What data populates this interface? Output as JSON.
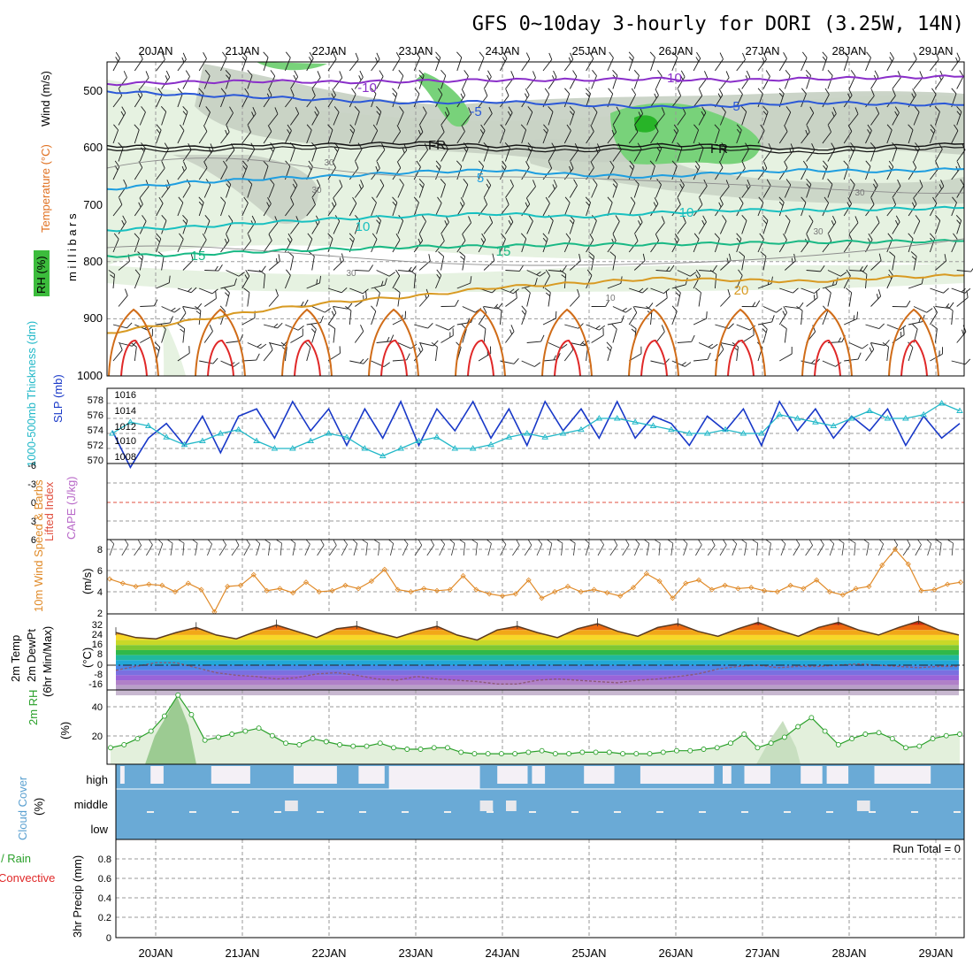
{
  "title": "GFS 0~10day 3-hourly for DORI (3.25W, 14N)",
  "dates": [
    "20JAN",
    "21JAN",
    "22JAN",
    "23JAN",
    "24JAN",
    "25JAN",
    "26JAN",
    "27JAN",
    "28JAN",
    "29JAN"
  ],
  "run_total": "Run Total = 0",
  "colors": {
    "rh_green_light": "#e6f2e1",
    "rh_gray": "#c5cfc2",
    "rh_green": "#78d27a",
    "rh_green_dark": "#28b428",
    "temp_m10": "#8a2fc9",
    "temp_m5": "#2b58d8",
    "temp_5": "#1e9ee0",
    "temp_10": "#18c0c0",
    "temp_15": "#18b884",
    "temp_20": "#d89a22",
    "temp_25": "#d06c18",
    "temp_30": "#e02828",
    "slp": "#1838c8",
    "thickness": "#22b8c8",
    "lifted_index": "#e05040",
    "wind": "#e08a28",
    "temp2m": "#c83c14",
    "dewpt": "#8c5a78",
    "rh2m": "#2aa02a",
    "cloud": "#6aaad6",
    "cloud_clear": "#f4f0f6"
  },
  "chart_data": [
    {
      "id": "upper",
      "type": "heatmap",
      "ylabel": "m i l l i b a r s",
      "legend_label": "RH (%)",
      "label_wind": "Wind (m/s)",
      "label_temp": "Temperature (°C)",
      "y_ticks": [
        "500",
        "600",
        "700",
        "800",
        "900",
        "1000"
      ],
      "contour_labels": [
        "-10",
        "-10",
        "-5",
        "-5",
        "FR",
        "FR",
        "5",
        "10",
        "10",
        "15",
        "15",
        "20",
        "30",
        "30",
        "30",
        "30",
        "30",
        "10"
      ],
      "temp_lines": [
        {
          "label": "-10",
          "mb": [
            489,
            486,
            484,
            486,
            484,
            482,
            482,
            480,
            483,
            480,
            478,
            476
          ]
        },
        {
          "label": "-5",
          "mb": [
            502,
            508,
            512,
            518,
            522,
            520,
            525,
            530,
            527,
            521,
            524,
            526
          ]
        },
        {
          "label": "FR",
          "mb": [
            597,
            600,
            595,
            595,
            592,
            598,
            600,
            596,
            597,
            604,
            598,
            594
          ]
        },
        {
          "label": "5",
          "mb": [
            673,
            662,
            655,
            650,
            643,
            640,
            648,
            652,
            644,
            640,
            642,
            638
          ]
        },
        {
          "label": "10",
          "mb": [
            745,
            740,
            732,
            725,
            720,
            716,
            722,
            715,
            710,
            710,
            708,
            706
          ]
        },
        {
          "label": "15",
          "mb": [
            790,
            788,
            782,
            778,
            774,
            773,
            770,
            770,
            768,
            766,
            765,
            764
          ]
        },
        {
          "label": "20",
          "mb": [
            925,
            905,
            885,
            870,
            860,
            845,
            838,
            830,
            832,
            835,
            828,
            824
          ]
        }
      ]
    },
    {
      "id": "slp_thick",
      "type": "line",
      "label_thick": "1000-500mb Thickness (dm)",
      "label_slp": "SLP (mb)",
      "left_ticks": [
        "578",
        "576",
        "574",
        "572",
        "570"
      ],
      "right_ticks": [
        "1016",
        "1014",
        "1012",
        "1010",
        "1008"
      ],
      "slp_series": [
        1012,
        1007,
        1011,
        1013,
        1010,
        1014,
        1009,
        1014,
        1015,
        1011,
        1016,
        1012,
        1015,
        1010,
        1015,
        1011,
        1016,
        1010,
        1015,
        1012,
        1016,
        1011,
        1015,
        1010,
        1016,
        1012,
        1015,
        1011,
        1016,
        1011,
        1014,
        1013,
        1010,
        1014,
        1012,
        1015,
        1010,
        1016,
        1012,
        1015,
        1011,
        1014,
        1012,
        1015,
        1010,
        1014,
        1011,
        1013
      ],
      "thick_series": [
        574,
        575.5,
        575,
        573.5,
        572.5,
        573,
        574,
        574.5,
        573,
        572,
        572,
        573,
        574,
        573.5,
        572,
        571,
        572,
        573,
        573.5,
        572,
        572,
        572.5,
        573.5,
        574,
        573.5,
        574,
        574.5,
        576,
        576,
        575.5,
        575,
        574.5,
        574,
        574,
        574.5,
        574,
        574,
        576.5,
        576,
        575.5,
        575,
        576,
        577,
        576,
        576,
        576.5,
        578,
        577
      ]
    },
    {
      "id": "li_cape",
      "type": "line",
      "label_li": "Lifted Index",
      "label_cape": "CAPE (J/kg)",
      "ticks": [
        "-6",
        "-3",
        "0",
        "3",
        "6"
      ],
      "cape_values": []
    },
    {
      "id": "wind10",
      "type": "line",
      "label_wind": "10m Wind Speed & Barbs",
      "ylabel": "(m/s)",
      "ticks": [
        "8",
        "6",
        "4",
        "2"
      ],
      "values": [
        5.2,
        4.8,
        4.5,
        4.7,
        4.6,
        4.0,
        4.8,
        4.2,
        2.1,
        4.5,
        4.6,
        5.6,
        4.1,
        4.3,
        3.9,
        4.9,
        4.0,
        4.1,
        4.6,
        4.3,
        5.0,
        6.1,
        4.2,
        4.0,
        4.3,
        4.1,
        4.2,
        5.5,
        4.2,
        3.8,
        3.6,
        3.8,
        5.1,
        3.4,
        4.0,
        4.5,
        4.0,
        4.2,
        3.9,
        3.6,
        4.4,
        5.7,
        5.0,
        3.4,
        4.8,
        5.1,
        4.2,
        4.6,
        4.3,
        4.4,
        4.1,
        4.0,
        4.6,
        4.3,
        5.1,
        4.0,
        3.7,
        4.3,
        4.5,
        6.5,
        8.0,
        6.6,
        4.1,
        4.2,
        4.7,
        4.9
      ]
    },
    {
      "id": "temp2m",
      "type": "line",
      "label_temp": "2m Temp",
      "label_dew": "2m DewPt",
      "label_minmax": "(6hr Min/Max)",
      "ylabel": "(°C)",
      "ticks": [
        "32",
        "24",
        "16",
        "8",
        "0",
        "-8",
        "-16"
      ],
      "temp_values": [
        26,
        22,
        21,
        26,
        30,
        24,
        21,
        27,
        32,
        27,
        22,
        29,
        31,
        26,
        22,
        27,
        31,
        24,
        20,
        28,
        31,
        26,
        22,
        29,
        33,
        27,
        23,
        30,
        33,
        27,
        23,
        29,
        34,
        28,
        23,
        30,
        34,
        28,
        24,
        30,
        35,
        28,
        24
      ],
      "dew_values": [
        -4,
        -1,
        2,
        2,
        -2,
        -6,
        -8,
        -9,
        -11,
        -10,
        -7,
        -6,
        -8,
        -11,
        -12,
        -9,
        -11,
        -12,
        -13,
        -15,
        -15,
        -12,
        -11,
        -12,
        -13,
        -14,
        -12,
        -11,
        -9,
        -7,
        -3,
        -1,
        0,
        -2,
        -1,
        -1,
        0,
        1,
        0,
        -1,
        -2,
        -1,
        -1
      ]
    },
    {
      "id": "rh2m",
      "type": "area",
      "ylabel": "(%)",
      "label": "2m RH",
      "ticks": [
        "40",
        "20"
      ],
      "values": [
        11,
        13,
        17,
        22,
        32,
        46,
        33,
        16,
        18,
        20,
        22,
        24,
        19,
        14,
        13,
        17,
        15,
        13,
        12,
        12,
        14,
        11,
        10,
        10,
        11,
        11,
        8,
        7,
        7,
        7,
        7,
        8,
        9,
        7,
        7,
        8,
        8,
        8,
        7,
        7,
        7,
        8,
        9,
        9,
        10,
        11,
        14,
        20,
        11,
        14,
        18,
        25,
        31,
        22,
        13,
        17,
        20,
        21,
        17,
        11,
        12,
        17,
        19,
        20
      ]
    },
    {
      "id": "cloud",
      "type": "bar",
      "label": "Cloud Cover",
      "ylabel": "(%)",
      "levels": [
        "high",
        "middle",
        "low"
      ],
      "high_clear_runs": [
        [
          0.05,
          0.1
        ],
        [
          0.4,
          0.55
        ],
        [
          1.1,
          1.55
        ],
        [
          2.05,
          2.55
        ],
        [
          2.8,
          3.1
        ],
        [
          3.15,
          4.2
        ],
        [
          4.4,
          4.75
        ],
        [
          4.8,
          4.95
        ],
        [
          5.4,
          5.75
        ],
        [
          6.05,
          6.9
        ],
        [
          7.0,
          7.1
        ],
        [
          7.25,
          7.55
        ],
        [
          7.9,
          8.15
        ],
        [
          8.2,
          8.45
        ],
        [
          8.75,
          9.4
        ]
      ],
      "middle_blank_runs": [
        [
          1.95,
          2.1
        ],
        [
          4.2,
          4.35
        ],
        [
          4.5,
          4.62
        ],
        [
          8.55,
          8.7
        ]
      ]
    },
    {
      "id": "precip",
      "type": "bar",
      "label_total": "Total / Rain",
      "label_conv": "Convective",
      "ylabel": "3hr Precip (mm)",
      "ticks": [
        "0.8",
        "0.6",
        "0.4",
        "0.2",
        "0"
      ],
      "values": []
    }
  ]
}
